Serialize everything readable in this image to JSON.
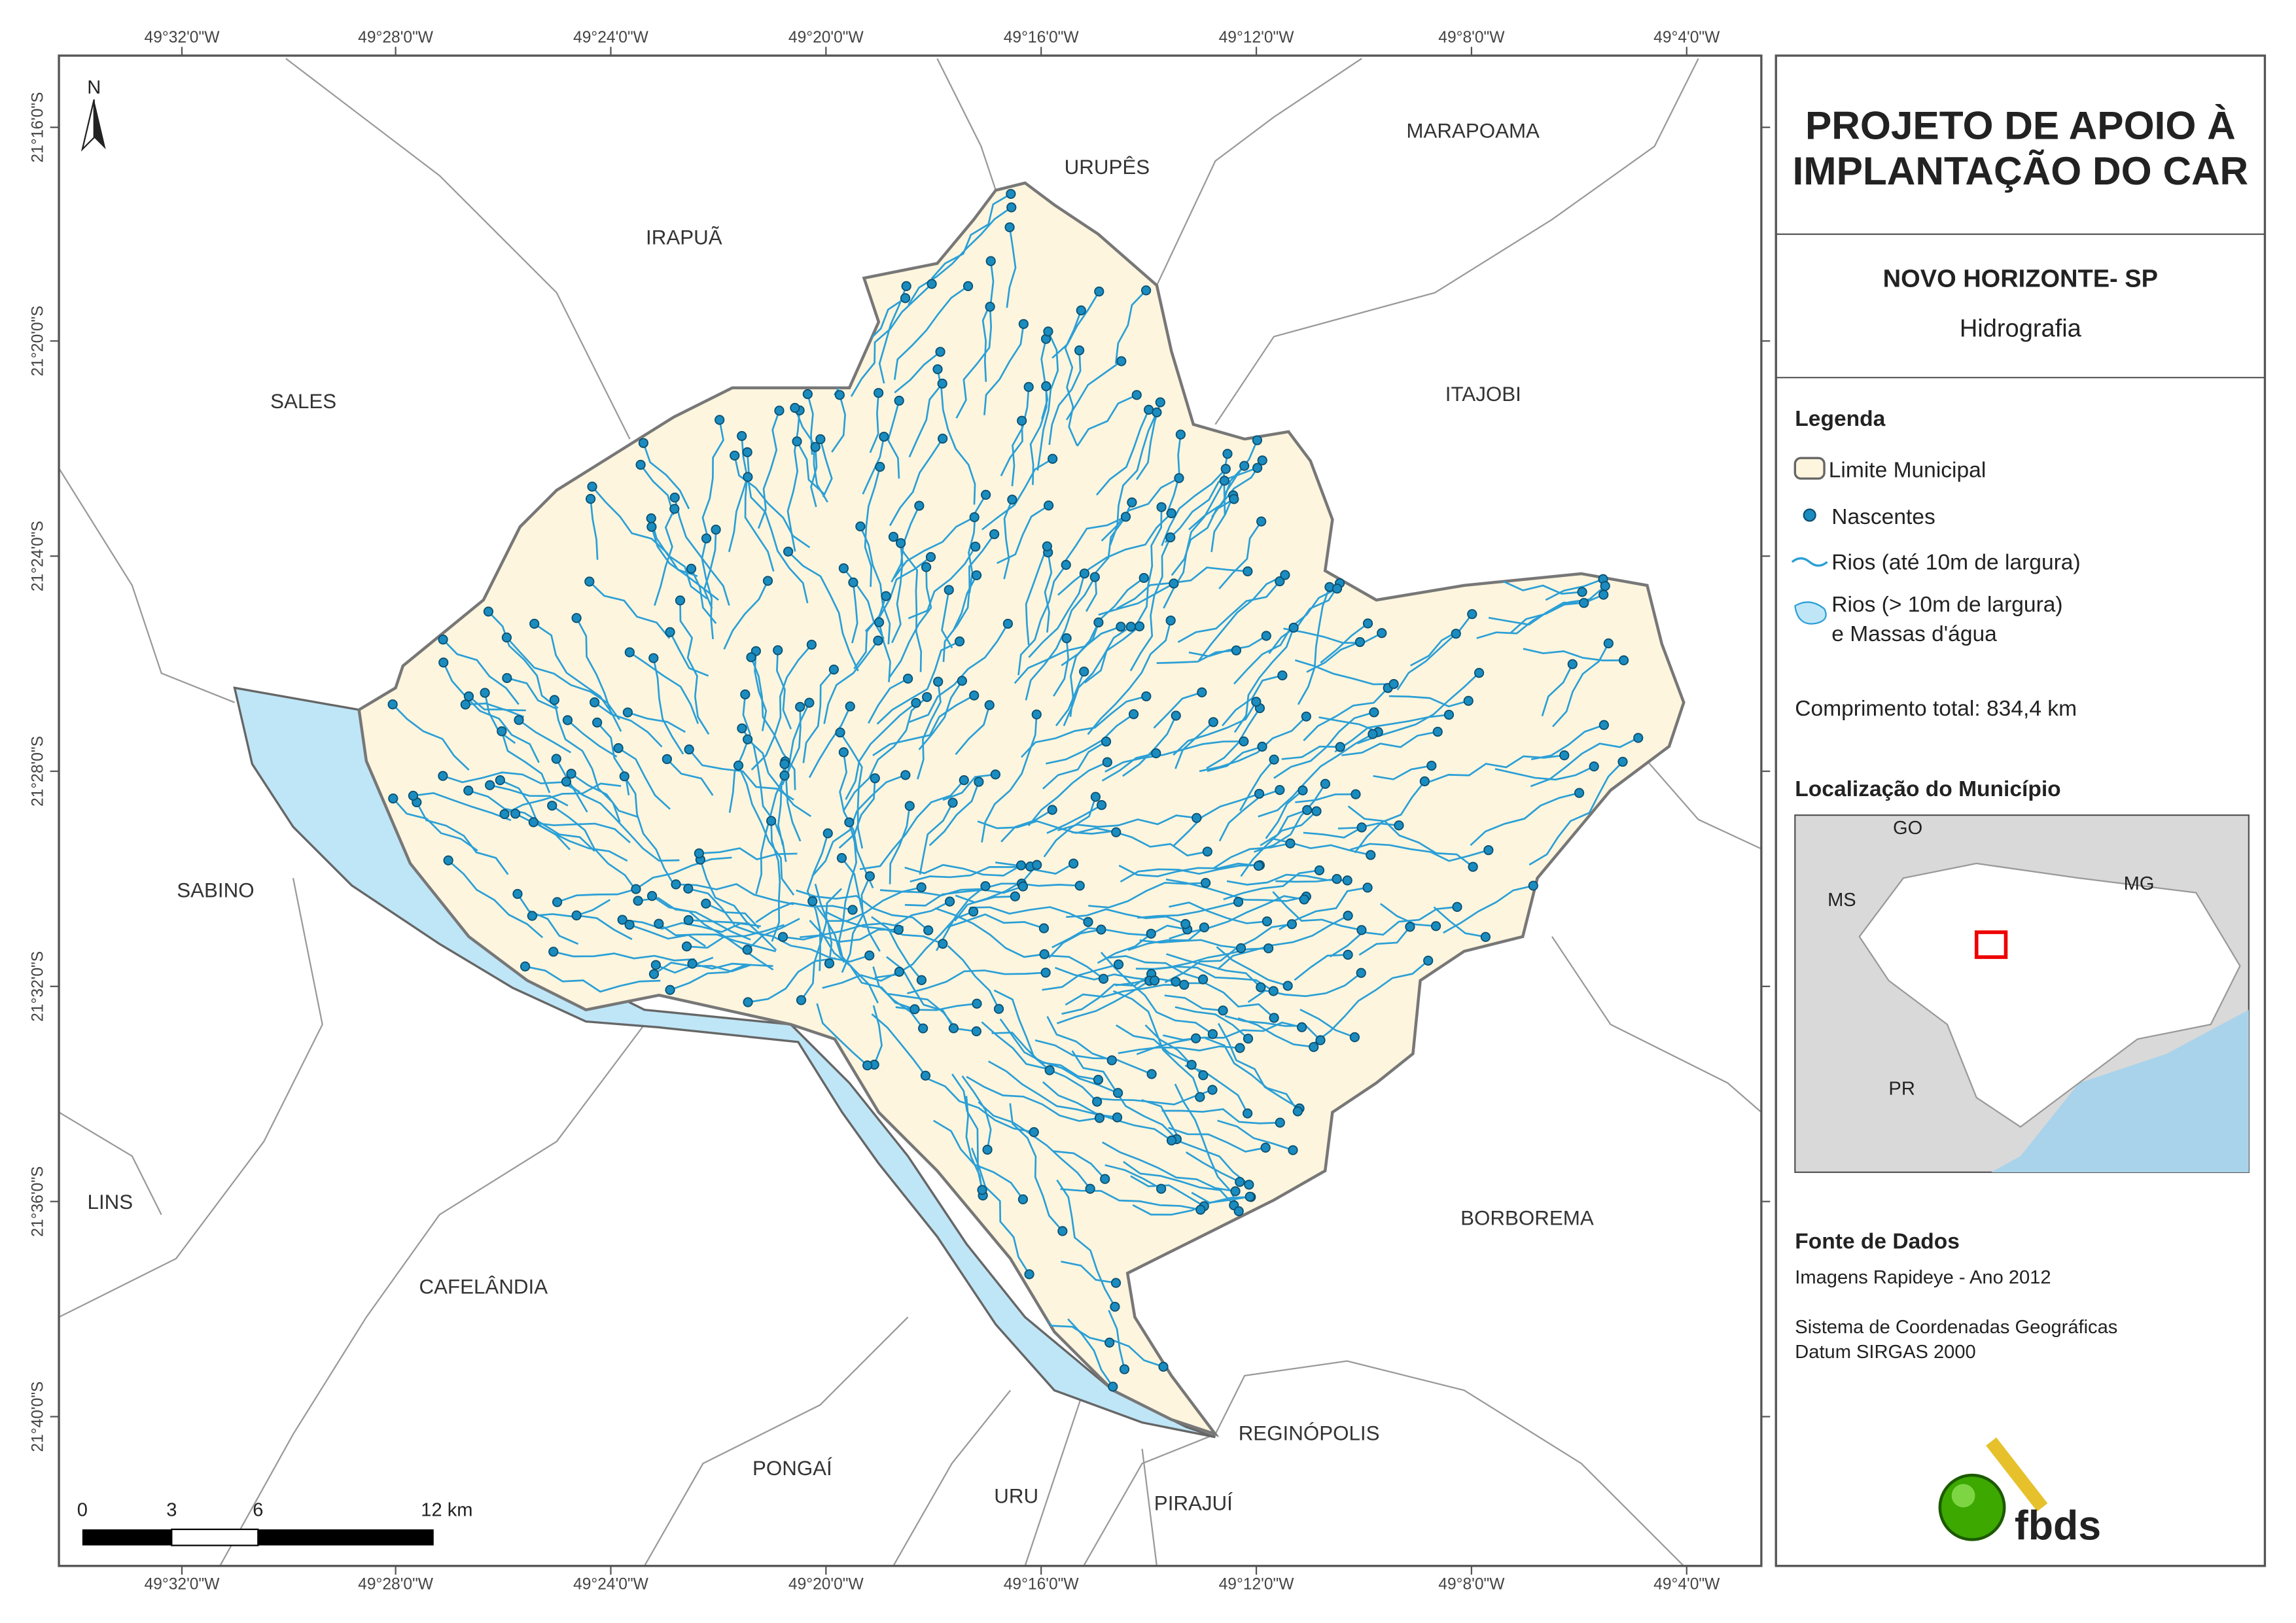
{
  "map": {
    "top_ticks": [
      "49°32'0\"W",
      "49°28'0\"W",
      "49°24'0\"W",
      "49°20'0\"W",
      "49°16'0\"W",
      "49°12'0\"W",
      "49°8'0\"W",
      "49°4'0\"W"
    ],
    "bottom_ticks": [
      "49°32'0\"W",
      "49°28'0\"W",
      "49°24'0\"W",
      "49°20'0\"W",
      "49°16'0\"W",
      "49°12'0\"W",
      "49°8'0\"W",
      "49°4'0\"W"
    ],
    "left_ticks": [
      "21°16'0\"S",
      "21°20'0\"S",
      "21°24'0\"S",
      "21°28'0\"S",
      "21°32'0\"S",
      "21°36'0\"S",
      "21°40'0\"S"
    ],
    "north": "N",
    "places": [
      "URUPÊS",
      "MARAPOAMA",
      "IRAPUÃ",
      "SALES",
      "ITAJOBI",
      "SABINO",
      "LINS",
      "BORBOREMA",
      "CAFELÂNDIA",
      "REGINÓPOLIS",
      "PONGAÍ",
      "URU",
      "PIRAJUÍ"
    ],
    "scale_bar": [
      "0",
      "3",
      "6",
      "12 km"
    ]
  },
  "panel": {
    "title": [
      "PROJETO DE APOIO À",
      "IMPLANTAÇÃO DO CAR"
    ],
    "municipality": "NOVO HORIZONTE- SP",
    "theme": "Hidrografia",
    "legend_title": "Legenda",
    "legend": [
      "Limite Municipal",
      "Nascentes",
      "Rios (até 10m de largura)",
      "Rios (> 10m de largura)",
      "e Massas d'água"
    ],
    "total_length": "Comprimento total: 834,4 km",
    "location_title": "Localização do Município",
    "location_labels": [
      "GO",
      "MS",
      "MG",
      "PR"
    ],
    "source_title": "Fonte de Dados",
    "source_lines": [
      "Imagens Rapideye - Ano 2012",
      "Sistema de Coordenadas Geográficas",
      "Datum SIRGAS 2000"
    ],
    "logo": "fbds"
  }
}
